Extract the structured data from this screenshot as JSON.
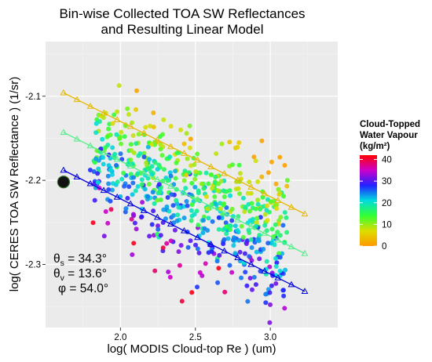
{
  "chart_data": {
    "type": "scatter",
    "title_lines": [
      "Bin-wise Collected TOA SW Reflectances",
      "and Resulting Linear Model"
    ],
    "xlabel": "log( MODIS Cloud-top Re ) (um)",
    "ylabel": "log( CERES TOA SW Reflectance ) (1/sr)",
    "xlim": [
      1.5,
      3.45
    ],
    "ylim": [
      -2.375,
      -2.035
    ],
    "x_ticks": [
      2.0,
      2.5,
      3.0
    ],
    "x_tick_labels": [
      "2.0",
      "2.5",
      "3.0"
    ],
    "y_ticks": [
      -2.1,
      -2.2,
      -2.3
    ],
    "y_tick_labels": [
      "-2.1",
      "-2.2",
      "-2.3"
    ],
    "grid": true,
    "background": "#ebebeb",
    "legend": {
      "title_lines": [
        "Cloud-Topped",
        "Water Vapour",
        "(kg/m²)"
      ],
      "placement": "right",
      "min": 0,
      "max": 42,
      "ticks": [
        0,
        10,
        20,
        30,
        40
      ],
      "tick_labels": [
        "0",
        "10",
        "20",
        "30",
        "40"
      ],
      "colormap": [
        "#ff9900",
        "#dddd00",
        "#33ff33",
        "#00dddd",
        "#2222ff",
        "#cc00cc",
        "#ff0000"
      ]
    },
    "model_lines": [
      {
        "color": "#e6b800",
        "x_start": 1.62,
        "x_end": 3.23,
        "y_start": -2.096,
        "y_end": -2.24
      },
      {
        "color": "#55ee88",
        "x_start": 1.62,
        "x_end": 3.23,
        "y_start": -2.143,
        "y_end": -2.287
      },
      {
        "color": "#0000dd",
        "x_start": 1.62,
        "x_end": 3.23,
        "y_start": -2.188,
        "y_end": -2.332
      }
    ],
    "marker_point": {
      "x": 1.62,
      "y": -2.202
    },
    "points_seeded": true,
    "annotations": [
      {
        "symbol": "θ",
        "sub": "s",
        "value": " = 34.3°"
      },
      {
        "symbol": "θ",
        "sub": "v",
        "value": " = 13.6°"
      },
      {
        "symbol": "φ",
        "sub": "",
        "value": " = 54.0°"
      }
    ]
  }
}
